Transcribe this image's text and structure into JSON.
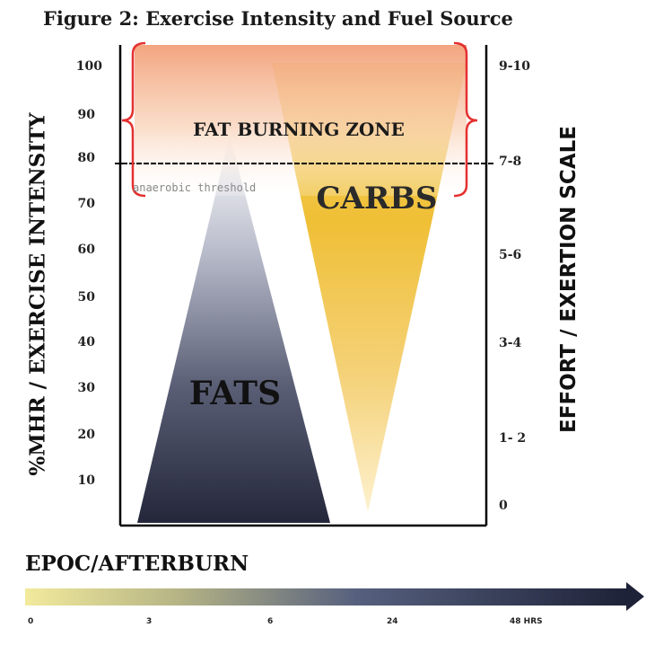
{
  "title": "Figure 2: Exercise Intensity and Fuel Source",
  "left_axis": {
    "label": "%MHR / EXERCISE INTENSITY",
    "ticks": [
      "100",
      "90",
      "80",
      "70",
      "60",
      "50",
      "40",
      "30",
      "20",
      "10"
    ]
  },
  "right_axis": {
    "label": "EFFORT / EXERTION SCALE",
    "ticks": [
      "9-10",
      "7-8",
      "5-6",
      "3-4",
      "1- 2",
      "0"
    ]
  },
  "zones": {
    "fat_burning_zone": "FAT BURNING ZONE",
    "anaerobic_threshold": "anaerobic threshold",
    "fats": "FATS",
    "carbs": "CARBS"
  },
  "epoc": {
    "title": "EPOC/AFTERBURN",
    "ticks": [
      "0",
      "3",
      "6",
      "24",
      "48 HRS"
    ]
  },
  "colors": {
    "bracket": "#e53030",
    "zone_top": "#f2a078",
    "carbs_fill": "#f0c040",
    "fats_fill": "#2a2d40",
    "epoc_start": "#f0e8a0",
    "epoc_end": "#1e2238"
  }
}
